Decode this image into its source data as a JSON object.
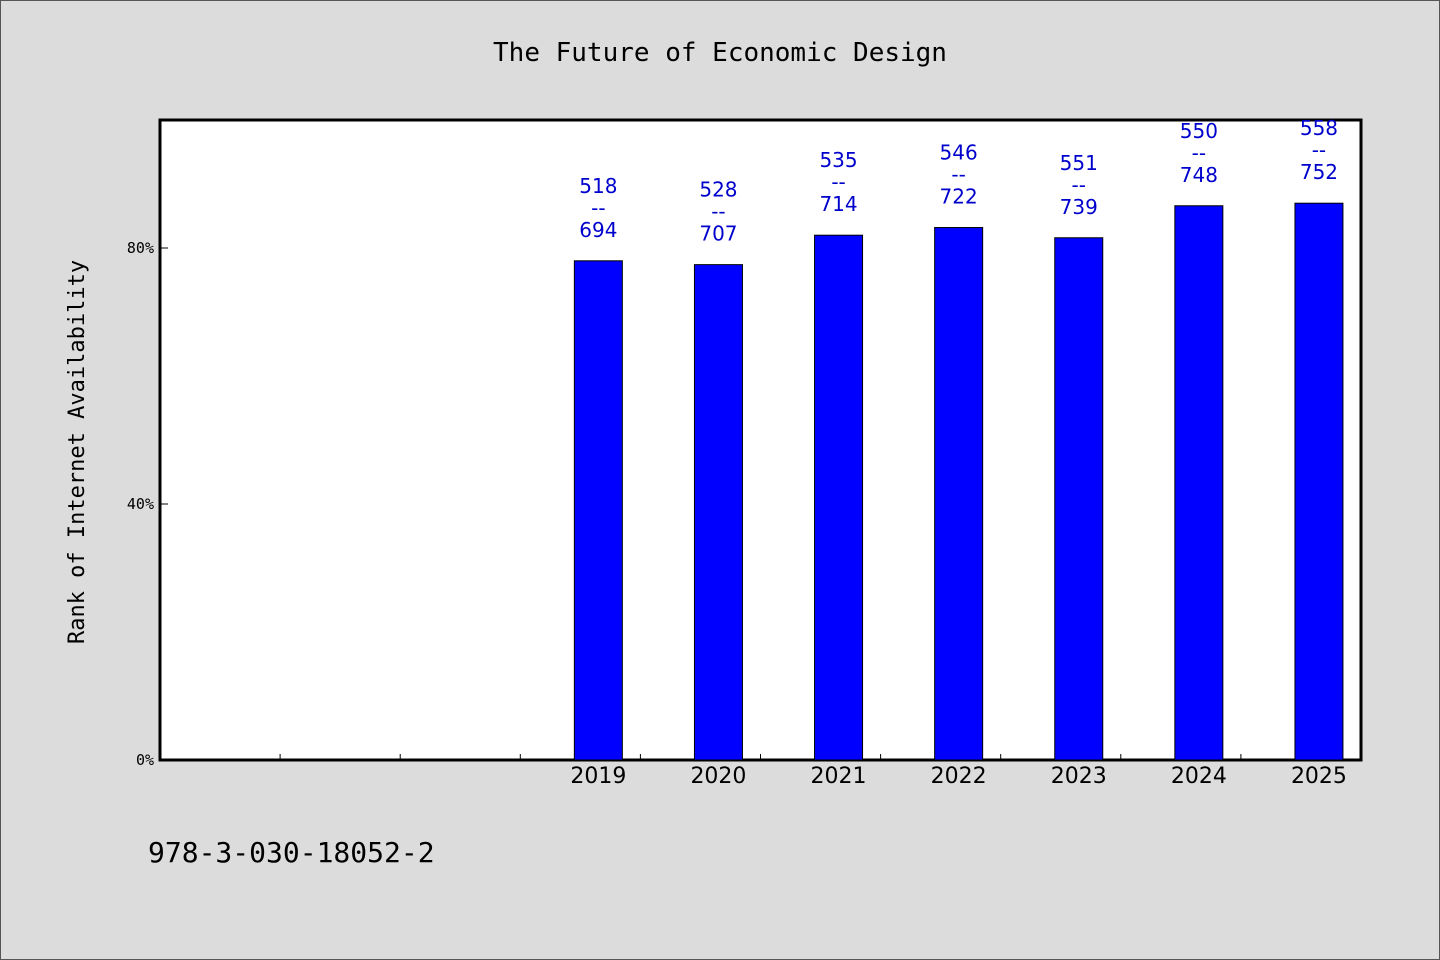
{
  "chart_data": {
    "type": "bar",
    "title": "The Future of Economic Design",
    "xlabel": "",
    "ylabel": "Rank of Internet Availability",
    "categories": [
      "",
      "",
      "",
      "2019",
      "2020",
      "2021",
      "2022",
      "2023",
      "2024",
      "2025"
    ],
    "values": [
      null,
      null,
      null,
      78,
      77.4,
      82,
      83.2,
      81.6,
      86.6,
      87
    ],
    "bar_labels": [
      null,
      null,
      null,
      [
        "518",
        "--",
        "694"
      ],
      [
        "528",
        "--",
        "707"
      ],
      [
        "535",
        "--",
        "714"
      ],
      [
        "546",
        "--",
        "722"
      ],
      [
        "551",
        "--",
        "739"
      ],
      [
        "550",
        "--",
        "748"
      ],
      [
        "558",
        "--",
        "752"
      ]
    ],
    "ylim": [
      0,
      100
    ],
    "yticks": [
      0,
      40,
      80
    ],
    "ytick_labels": [
      "0%",
      "40%",
      "80%"
    ],
    "grid": false,
    "bar_color": "#0000ff",
    "label_color": "#0000cc"
  },
  "footer": {
    "isbn": "978-3-030-18052-2"
  }
}
